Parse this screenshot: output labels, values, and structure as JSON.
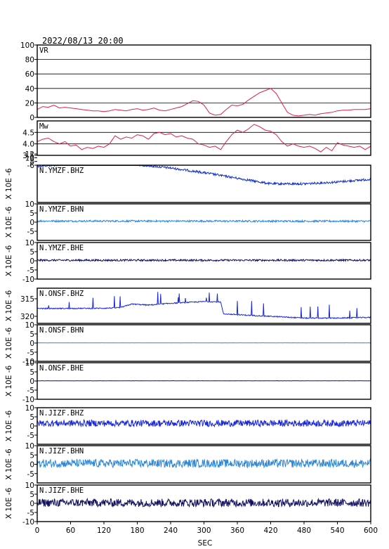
{
  "header": {
    "datetime": "2022/08/13 20:00"
  },
  "chart_data": {
    "type": "line",
    "x_axis": {
      "label": "SEC",
      "ticks": [
        0,
        60,
        120,
        180,
        240,
        300,
        360,
        420,
        480,
        540,
        600
      ],
      "range": [
        0,
        600
      ]
    },
    "panels": [
      {
        "name": "VR",
        "color": "#e0204a",
        "ylim": [
          0,
          100
        ],
        "yticks": [
          0,
          20,
          40,
          60,
          80,
          100
        ],
        "grid": true,
        "points": [
          [
            0,
            11
          ],
          [
            10,
            15
          ],
          [
            20,
            14
          ],
          [
            30,
            17
          ],
          [
            40,
            13
          ],
          [
            50,
            14
          ],
          [
            60,
            13
          ],
          [
            70,
            12
          ],
          [
            80,
            11
          ],
          [
            90,
            10
          ],
          [
            100,
            9
          ],
          [
            110,
            9
          ],
          [
            120,
            8
          ],
          [
            130,
            9
          ],
          [
            140,
            11
          ],
          [
            150,
            10
          ],
          [
            160,
            9
          ],
          [
            170,
            11
          ],
          [
            180,
            12
          ],
          [
            190,
            10
          ],
          [
            200,
            11
          ],
          [
            210,
            13
          ],
          [
            220,
            10
          ],
          [
            230,
            9
          ],
          [
            240,
            11
          ],
          [
            250,
            13
          ],
          [
            260,
            15
          ],
          [
            270,
            19
          ],
          [
            280,
            23
          ],
          [
            290,
            22
          ],
          [
            300,
            17
          ],
          [
            310,
            6
          ],
          [
            320,
            3
          ],
          [
            330,
            4
          ],
          [
            340,
            11
          ],
          [
            350,
            17
          ],
          [
            360,
            16
          ],
          [
            370,
            18
          ],
          [
            380,
            24
          ],
          [
            390,
            29
          ],
          [
            400,
            34
          ],
          [
            410,
            37
          ],
          [
            420,
            40
          ],
          [
            430,
            33
          ],
          [
            440,
            20
          ],
          [
            450,
            7
          ],
          [
            460,
            3
          ],
          [
            470,
            2
          ],
          [
            480,
            3
          ],
          [
            490,
            4
          ],
          [
            500,
            3
          ],
          [
            510,
            5
          ],
          [
            520,
            6
          ],
          [
            530,
            7
          ],
          [
            540,
            9
          ],
          [
            550,
            10
          ],
          [
            560,
            10
          ],
          [
            570,
            11
          ],
          [
            580,
            11
          ],
          [
            590,
            11
          ],
          [
            600,
            12
          ]
        ]
      },
      {
        "name": "Mw",
        "color": "#e0204a",
        "ylim": [
          3.5,
          5.0
        ],
        "yticks": [
          3.5,
          4.0,
          4.5
        ],
        "ytick_labels": [
          "3.5",
          "4.0",
          "4.5"
        ],
        "grid": true,
        "points": [
          [
            0,
            4.1
          ],
          [
            10,
            4.2
          ],
          [
            20,
            4.25
          ],
          [
            30,
            4.1
          ],
          [
            40,
            4.0
          ],
          [
            50,
            4.1
          ],
          [
            60,
            3.9
          ],
          [
            70,
            3.95
          ],
          [
            80,
            3.75
          ],
          [
            90,
            3.85
          ],
          [
            100,
            3.8
          ],
          [
            110,
            3.9
          ],
          [
            120,
            3.85
          ],
          [
            130,
            4.0
          ],
          [
            140,
            4.35
          ],
          [
            150,
            4.2
          ],
          [
            160,
            4.3
          ],
          [
            170,
            4.25
          ],
          [
            180,
            4.4
          ],
          [
            190,
            4.35
          ],
          [
            200,
            4.2
          ],
          [
            210,
            4.45
          ],
          [
            220,
            4.5
          ],
          [
            230,
            4.4
          ],
          [
            240,
            4.45
          ],
          [
            250,
            4.3
          ],
          [
            260,
            4.35
          ],
          [
            270,
            4.25
          ],
          [
            280,
            4.2
          ],
          [
            290,
            4.0
          ],
          [
            300,
            3.95
          ],
          [
            310,
            3.85
          ],
          [
            320,
            3.9
          ],
          [
            330,
            3.75
          ],
          [
            340,
            4.1
          ],
          [
            350,
            4.4
          ],
          [
            360,
            4.6
          ],
          [
            370,
            4.5
          ],
          [
            380,
            4.65
          ],
          [
            390,
            4.85
          ],
          [
            400,
            4.75
          ],
          [
            410,
            4.6
          ],
          [
            420,
            4.55
          ],
          [
            430,
            4.4
          ],
          [
            440,
            4.1
          ],
          [
            450,
            3.9
          ],
          [
            460,
            4.0
          ],
          [
            470,
            3.9
          ],
          [
            480,
            3.85
          ],
          [
            490,
            3.9
          ],
          [
            500,
            3.8
          ],
          [
            510,
            3.65
          ],
          [
            520,
            3.85
          ],
          [
            530,
            3.7
          ],
          [
            540,
            4.05
          ],
          [
            550,
            3.95
          ],
          [
            560,
            3.9
          ],
          [
            570,
            3.85
          ],
          [
            580,
            3.9
          ],
          [
            590,
            3.75
          ],
          [
            600,
            3.9
          ]
        ]
      },
      {
        "name": "N.YMZF.BHZ",
        "color": "#1530c8",
        "ylabel": "X 10E -6",
        "ylim": [
          -6,
          14
        ],
        "yticks": [
          -6,
          -8,
          -10,
          -12
        ],
        "ytick_labels": [
          "-6",
          "8",
          "10",
          "12"
        ],
        "inverted": true,
        "baseline": [
          [
            0,
            -5.5
          ],
          [
            60,
            -6.5
          ],
          [
            120,
            -7
          ],
          [
            180,
            -6.3
          ],
          [
            240,
            -4.5
          ],
          [
            300,
            -2
          ],
          [
            360,
            1
          ],
          [
            420,
            4
          ],
          [
            480,
            4
          ],
          [
            540,
            3
          ],
          [
            600,
            1.5
          ]
        ],
        "noise": 0.6
      },
      {
        "name": "N.YMZF.BHN",
        "color": "#2e88d8",
        "ylabel": "X 10E -6",
        "ylim": [
          -10,
          10
        ],
        "yticks": [
          10,
          5,
          0,
          -5
        ],
        "baseline": [
          [
            0,
            0.6
          ],
          [
            600,
            0.5
          ]
        ],
        "noise": 0.5
      },
      {
        "name": "N.YMZF.BHE",
        "color": "#101060",
        "ylabel": "X 10E -6",
        "ylim": [
          -10,
          10
        ],
        "yticks": [
          10,
          5,
          0,
          -5,
          -10
        ],
        "baseline": [
          [
            0,
            0.3
          ],
          [
            600,
            0.3
          ]
        ],
        "noise": 0.5
      },
      {
        "name": "N.ONSF.BHZ",
        "color": "#1a28d8",
        "ylabel": "X 10E -6",
        "ylim": [
          -322,
          -312
        ],
        "yticks": [
          -315,
          -320
        ],
        "ytick_labels": [
          "315",
          "320"
        ],
        "baseline": [
          [
            0,
            -317.8
          ],
          [
            120,
            -317.7
          ],
          [
            150,
            -317.5
          ],
          [
            170,
            -316.5
          ],
          [
            200,
            -316.8
          ],
          [
            240,
            -316.3
          ],
          [
            300,
            -315.8
          ],
          [
            330,
            -315.9
          ],
          [
            335,
            -319.3
          ],
          [
            380,
            -319.7
          ],
          [
            420,
            -320.0
          ],
          [
            480,
            -320.5
          ],
          [
            540,
            -320.5
          ],
          [
            600,
            -320.3
          ]
        ],
        "noise": 0.15
      },
      {
        "name": "N.ONSF.BHN",
        "color": "#2e88d8",
        "ylabel": "X 10E -6",
        "ylim": [
          -10,
          10
        ],
        "yticks": [
          10,
          5,
          0,
          -5,
          -10
        ],
        "baseline": [
          [
            0,
            0.1
          ],
          [
            600,
            0.1
          ]
        ],
        "noise": 0.05
      },
      {
        "name": "N.ONSF.BHE",
        "color": "#101060",
        "ylabel": "X 10E -6",
        "ylim": [
          -10,
          10
        ],
        "yticks": [
          10,
          5,
          0,
          -5,
          -10
        ],
        "baseline": [
          [
            0,
            0.1
          ],
          [
            600,
            0.1
          ]
        ],
        "noise": 0.08
      },
      {
        "name": "N.JIZF.BHZ",
        "color": "#1a28d8",
        "ylabel": "X 10E -6",
        "ylim": [
          -10,
          10
        ],
        "yticks": [
          10,
          5,
          0,
          -5
        ],
        "baseline": [
          [
            0,
            1.5
          ],
          [
            600,
            1.5
          ]
        ],
        "noise": 1.8
      },
      {
        "name": "N.JIZF.BHN",
        "color": "#2e88d8",
        "ylabel": "X 10E -6",
        "ylim": [
          -10,
          10
        ],
        "yticks": [
          10,
          5,
          0,
          -5
        ],
        "baseline": [
          [
            0,
            0.5
          ],
          [
            600,
            0.5
          ]
        ],
        "noise": 2.2
      },
      {
        "name": "N.JIZF.BHE",
        "color": "#101060",
        "ylabel": "X 10E -6",
        "ylim": [
          -10,
          10
        ],
        "yticks": [
          10,
          5,
          0,
          -5,
          -10
        ],
        "baseline": [
          [
            0,
            0.3
          ],
          [
            600,
            0.3
          ]
        ],
        "noise": 2.2
      }
    ]
  }
}
